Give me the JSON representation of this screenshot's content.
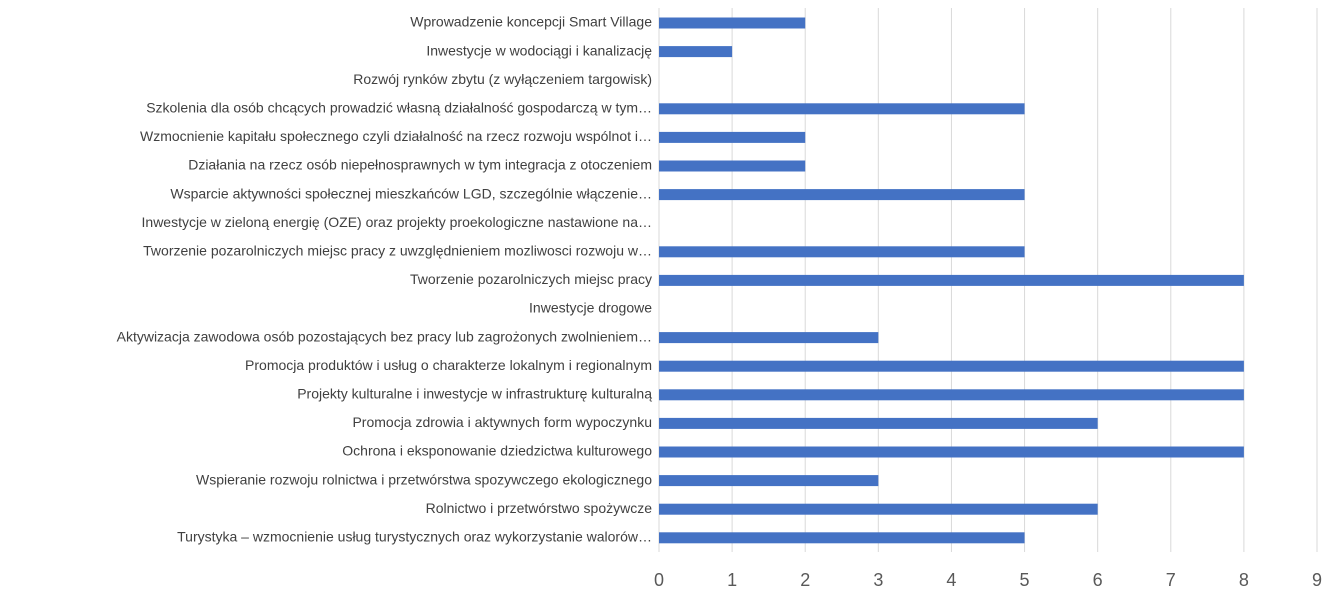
{
  "chart_data": {
    "type": "hbar",
    "categories": [
      "Wprowadzenie koncepcji Smart Village",
      "Inwestycje w wodociągi i kanalizację",
      "Rozwój rynków zbytu (z wyłączeniem targowisk)",
      "Szkolenia dla osób chcących prowadzić własną działalność gospodarczą w tym…",
      "Wzmocnienie kapitału społecznego czyli działalność na rzecz rozwoju wspólnot i…",
      "Działania na rzecz osób niepełnosprawnych w tym integracja z otoczeniem",
      "Wsparcie aktywności społecznej mieszkańców LGD, szczególnie włączenie…",
      "Inwestycje w zieloną energię (OZE) oraz projekty proekologiczne nastawione na…",
      "Tworzenie pozarolniczych miejsc pracy z uwzględnieniem mozliwosci rozwoju w…",
      "Tworzenie pozarolniczych miejsc pracy",
      "Inwestycje drogowe",
      "Aktywizacja zawodowa osób pozostających bez pracy lub zagrożonych zwolnieniem…",
      "Promocja produktów i usług o charakterze lokalnym i regionalnym",
      "Projekty kulturalne i inwestycje w infrastrukturę kulturalną",
      "Promocja zdrowia i aktywnych form wypoczynku",
      "Ochrona i eksponowanie dziedzictwa kulturowego",
      "Wspieranie rozwoju rolnictwa i przetwórstwa spozywczego ekologicznego",
      "Rolnictwo i przetwórstwo spożywcze",
      "Turystyka – wzmocnienie usług turystycznych oraz wykorzystanie walorów…"
    ],
    "values": [
      2,
      1,
      0,
      5,
      2,
      2,
      5,
      0,
      5,
      8,
      0,
      3,
      8,
      8,
      6,
      8,
      3,
      6,
      5
    ],
    "color": "#4472c4",
    "xlim": [
      0,
      9
    ],
    "xticks": [
      0,
      1,
      2,
      3,
      4,
      5,
      6,
      7,
      8,
      9
    ],
    "grid": true
  }
}
